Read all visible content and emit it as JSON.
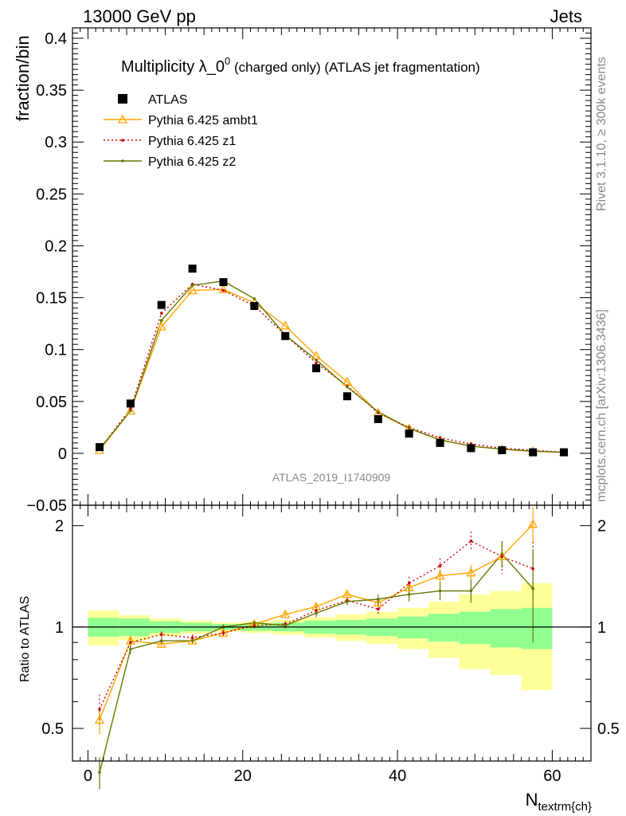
{
  "header": {
    "left": "13000 GeV pp",
    "right": "Jets"
  },
  "side": {
    "rivet": "Rivet 3.1.10, ≥ 300k events",
    "mcplots": "mcplots.cern.ch [arXiv:1306.3436]"
  },
  "chart_data": {
    "type": "scatter",
    "title_main": "Multiplicity λ_0",
    "title_sup": "0",
    "title_rest": " (charged only) (ATLAS jet fragmentation)",
    "watermark": "ATLAS_2019_I1740909",
    "xlabel_main": "N",
    "xlabel_sub": "textrm{ch}",
    "ylabel": "fraction/bin",
    "ratio_ylabel": "Ratio to ATLAS",
    "xlim": [
      -2,
      65
    ],
    "ylim": [
      -0.05,
      0.41
    ],
    "ratio_ylim": [
      0.4,
      2.3
    ],
    "x_ticks": [
      0,
      20,
      40,
      60
    ],
    "y_ticks": [
      -0.05,
      0,
      0.05,
      0.1,
      0.15,
      0.2,
      0.25,
      0.3,
      0.35,
      0.4
    ],
    "y_tick_labels": [
      "−0.05",
      "0",
      "0.05",
      "0.1",
      "0.15",
      "0.2",
      "0.25",
      "0.3",
      "0.35",
      "0.4"
    ],
    "ratio_ticks": [
      0.5,
      1,
      2
    ],
    "ratio_tick_labels": [
      "0.5",
      "1",
      "2"
    ],
    "x": [
      1.5,
      5.5,
      9.5,
      13.5,
      17.5,
      21.5,
      25.5,
      29.5,
      33.5,
      37.5,
      41.5,
      45.5,
      49.5,
      53.5,
      57.5,
      61.5
    ],
    "bin_edges": [
      0,
      4,
      8,
      12,
      16,
      20,
      24,
      28,
      32,
      36,
      40,
      44,
      48,
      52,
      56,
      60
    ],
    "band_inner": [
      0.065,
      0.06,
      0.04,
      0.03,
      0.02,
      0.025,
      0.03,
      0.045,
      0.05,
      0.06,
      0.075,
      0.095,
      0.11,
      0.13,
      0.14
    ],
    "band_outer": [
      0.12,
      0.085,
      0.06,
      0.045,
      0.03,
      0.04,
      0.05,
      0.07,
      0.09,
      0.11,
      0.14,
      0.19,
      0.25,
      0.28,
      0.35
    ],
    "legend": [
      "ATLAS",
      "Pythia 6.425 ambt1",
      "Pythia 6.425 z1",
      "Pythia 6.425 z2"
    ],
    "colors": {
      "data": "#000000",
      "ambt1": "#ffa500",
      "z1": "#cc0000",
      "z2": "#667700",
      "band_inner": "#90ff90",
      "band_outer": "#ffff99"
    },
    "series": [
      {
        "name": "ATLAS",
        "values": [
          0.006,
          0.048,
          0.143,
          0.178,
          0.165,
          0.142,
          0.113,
          0.082,
          0.055,
          0.033,
          0.019,
          0.01,
          0.005,
          0.003,
          0.001,
          0.001
        ]
      },
      {
        "name": "Pythia 6.425 ambt1",
        "values": [
          0.003,
          0.041,
          0.122,
          0.157,
          0.158,
          0.145,
          0.123,
          0.094,
          0.069,
          0.039,
          0.024,
          0.013,
          0.007,
          0.004,
          0.002,
          0.001
        ],
        "ratio": [
          0.53,
          0.91,
          0.89,
          0.91,
          0.96,
          1.02,
          1.09,
          1.15,
          1.25,
          1.18,
          1.31,
          1.42,
          1.45,
          1.62,
          2.02
        ],
        "ratio_err": [
          0.05,
          0.03,
          0.02,
          0.02,
          0.02,
          0.02,
          0.02,
          0.03,
          0.03,
          0.04,
          0.05,
          0.06,
          0.08,
          0.12,
          0.25
        ]
      },
      {
        "name": "Pythia 6.425 z1",
        "values": [
          0.004,
          0.043,
          0.135,
          0.163,
          0.157,
          0.142,
          0.114,
          0.087,
          0.065,
          0.039,
          0.025,
          0.015,
          0.009,
          0.005,
          0.003,
          0.001
        ],
        "ratio": [
          0.57,
          0.9,
          0.95,
          0.93,
          0.96,
          1.01,
          1.02,
          1.12,
          1.2,
          1.13,
          1.35,
          1.52,
          1.8,
          1.62,
          1.49
        ],
        "ratio_err": [
          0.06,
          0.03,
          0.02,
          0.02,
          0.02,
          0.02,
          0.02,
          0.03,
          0.03,
          0.04,
          0.06,
          0.08,
          0.12,
          0.18,
          0.3
        ]
      },
      {
        "name": "Pythia 6.425 z2",
        "values": [
          0.004,
          0.041,
          0.128,
          0.162,
          0.166,
          0.149,
          0.114,
          0.09,
          0.064,
          0.04,
          0.024,
          0.013,
          0.007,
          0.004,
          0.002,
          0.001
        ],
        "ratio": [
          0.37,
          0.86,
          0.91,
          0.91,
          1.0,
          1.03,
          1.01,
          1.1,
          1.19,
          1.21,
          1.25,
          1.28,
          1.28,
          1.65,
          1.3
        ],
        "ratio_err": [
          0.04,
          0.03,
          0.02,
          0.02,
          0.02,
          0.02,
          0.02,
          0.03,
          0.03,
          0.04,
          0.06,
          0.08,
          0.1,
          0.15,
          0.4
        ]
      }
    ]
  }
}
